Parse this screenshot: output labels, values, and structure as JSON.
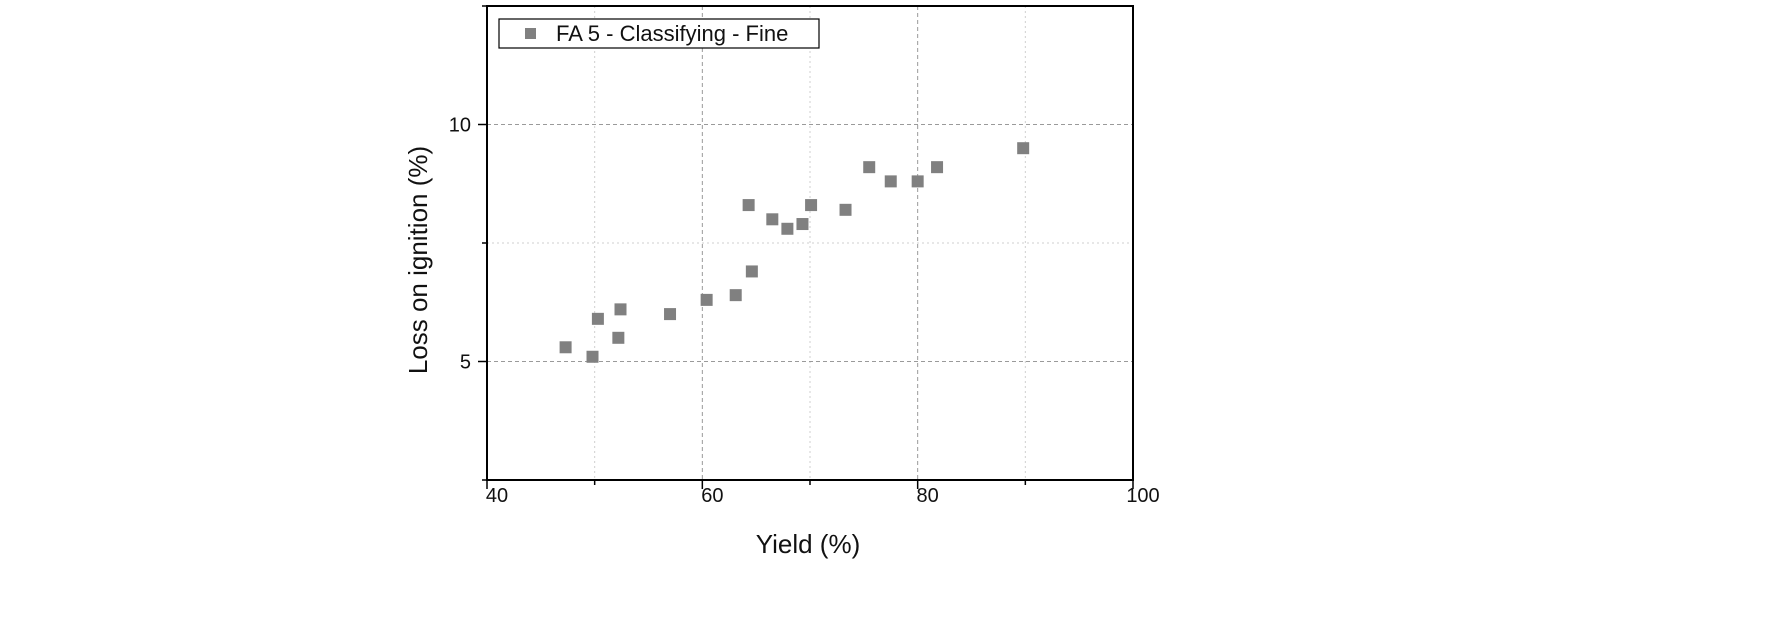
{
  "chart_data": {
    "type": "scatter",
    "title": "",
    "xlabel": "Yield (%)",
    "ylabel": "Loss on ignition (%)",
    "xlim": [
      40,
      100
    ],
    "ylim": [
      2.5,
      12.5
    ],
    "xticks": [
      40,
      60,
      80,
      100
    ],
    "xtick_labels": [
      "40",
      "60",
      "80",
      "100"
    ],
    "yticks": [
      5,
      10
    ],
    "ytick_labels": [
      "5",
      "10"
    ],
    "grid": true,
    "legend_position": "top-left",
    "series": [
      {
        "name": "FA 5 - Classifying - Fine",
        "marker": "square",
        "color": "#808080",
        "points": [
          {
            "x": 47.3,
            "y": 5.3
          },
          {
            "x": 49.8,
            "y": 5.1
          },
          {
            "x": 50.3,
            "y": 5.9
          },
          {
            "x": 52.2,
            "y": 5.5
          },
          {
            "x": 52.4,
            "y": 6.1
          },
          {
            "x": 57.0,
            "y": 6.0
          },
          {
            "x": 60.4,
            "y": 6.3
          },
          {
            "x": 63.1,
            "y": 6.4
          },
          {
            "x": 64.3,
            "y": 8.3
          },
          {
            "x": 64.6,
            "y": 6.9
          },
          {
            "x": 66.5,
            "y": 8.0
          },
          {
            "x": 67.9,
            "y": 7.8
          },
          {
            "x": 69.3,
            "y": 7.9
          },
          {
            "x": 70.1,
            "y": 8.3
          },
          {
            "x": 73.3,
            "y": 8.2
          },
          {
            "x": 75.5,
            "y": 9.1
          },
          {
            "x": 77.5,
            "y": 8.8
          },
          {
            "x": 80.0,
            "y": 8.8
          },
          {
            "x": 81.8,
            "y": 9.1
          },
          {
            "x": 89.8,
            "y": 9.5
          }
        ]
      }
    ]
  }
}
